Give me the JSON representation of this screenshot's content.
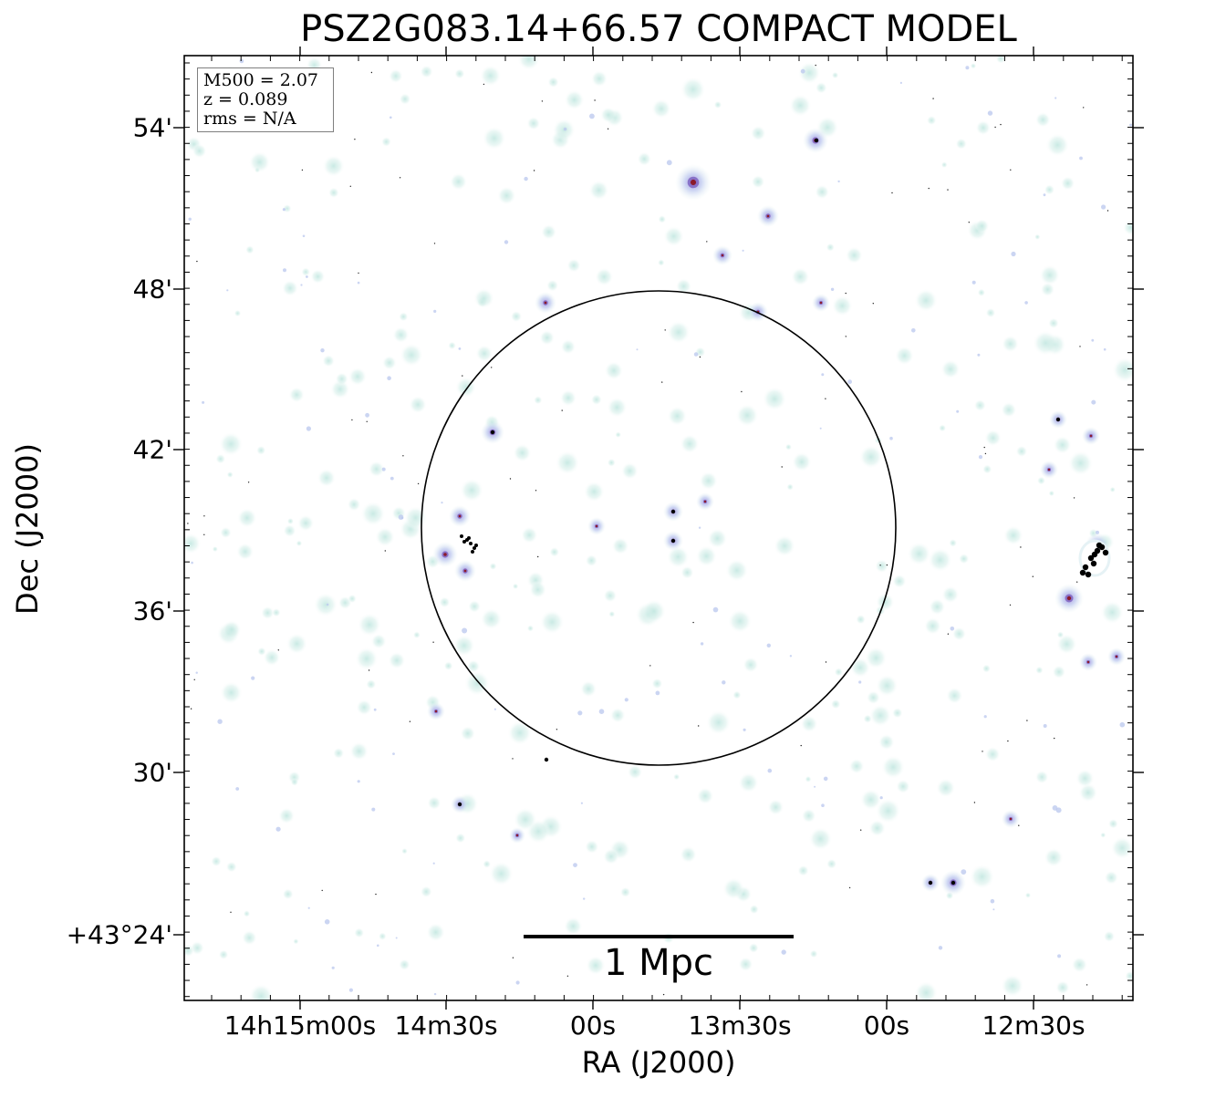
{
  "title": "PSZ2G083.14+66.57 COMPACT MODEL",
  "xlabel": "RA (J2000)",
  "ylabel": "Dec (J2000)",
  "x_ticks": [
    "14h15m00s",
    "14m30s",
    "00s",
    "13m30s",
    "00s",
    "12m30s"
  ],
  "y_ticks": [
    "54'",
    "48'",
    "42'",
    "36'",
    "30'",
    "+43°24'"
  ],
  "info_box": {
    "mass": "M500 = 2.07",
    "redshift": "z = 0.089",
    "rms": "rms = N/A"
  },
  "scale_bar_label": "1 Mpc",
  "colors": {
    "faint_source": "#cfeee8",
    "medium_source": "#b9c7ee",
    "bright_source": "#7a5fbf",
    "peak_source": "#8b1a2a",
    "core_source": "#000000"
  }
}
